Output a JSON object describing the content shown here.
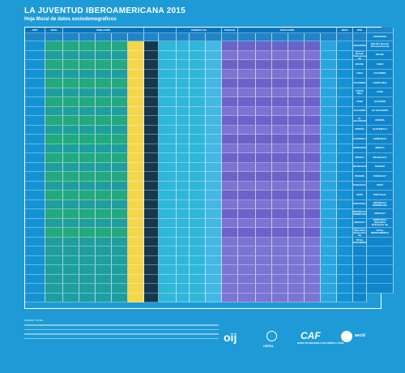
{
  "header": {
    "title": "LA JUVENTUD IBEROAMERICANA 2015",
    "subtitle": "Hoja Mural de datos sociodemográficos"
  },
  "table": {
    "group_headers": [
      "PAÍS",
      "SEXO",
      "POBLACIÓN",
      "",
      "POBREZA (%)",
      "TRABAJO",
      "EDUCACIÓN",
      "SEXO",
      "PAÍS"
    ],
    "countries": [
      "ARGENTINA",
      "BOLIVIA (Estado Plurinacional de)",
      "BRASIL",
      "CHILE",
      "COLOMBIA",
      "COSTA RICA",
      "CUBA",
      "ECUADOR",
      "EL SALVADOR",
      "ESPAÑA",
      "GUATEMALA",
      "HONDURAS",
      "MÉXICO",
      "NICARAGUA",
      "PANAMÁ",
      "PARAGUAY",
      "PERÚ",
      "PORTUGAL",
      "REPÚBLICA DOMINICANA",
      "URUGUAY",
      "VENEZUELA (República Bolivariana de)",
      "TOTAL IBEROAMÉRICA"
    ]
  },
  "footer": {
    "notes_label": "FUENTES Y NOTAS",
    "logos": {
      "oij": "oij",
      "cepal": "CEPAL",
      "caf": "CAF",
      "caf_sub": "BANCO DE DESARROLLO DE AMÉRICA LATINA",
      "aecid": "aecid"
    }
  }
}
